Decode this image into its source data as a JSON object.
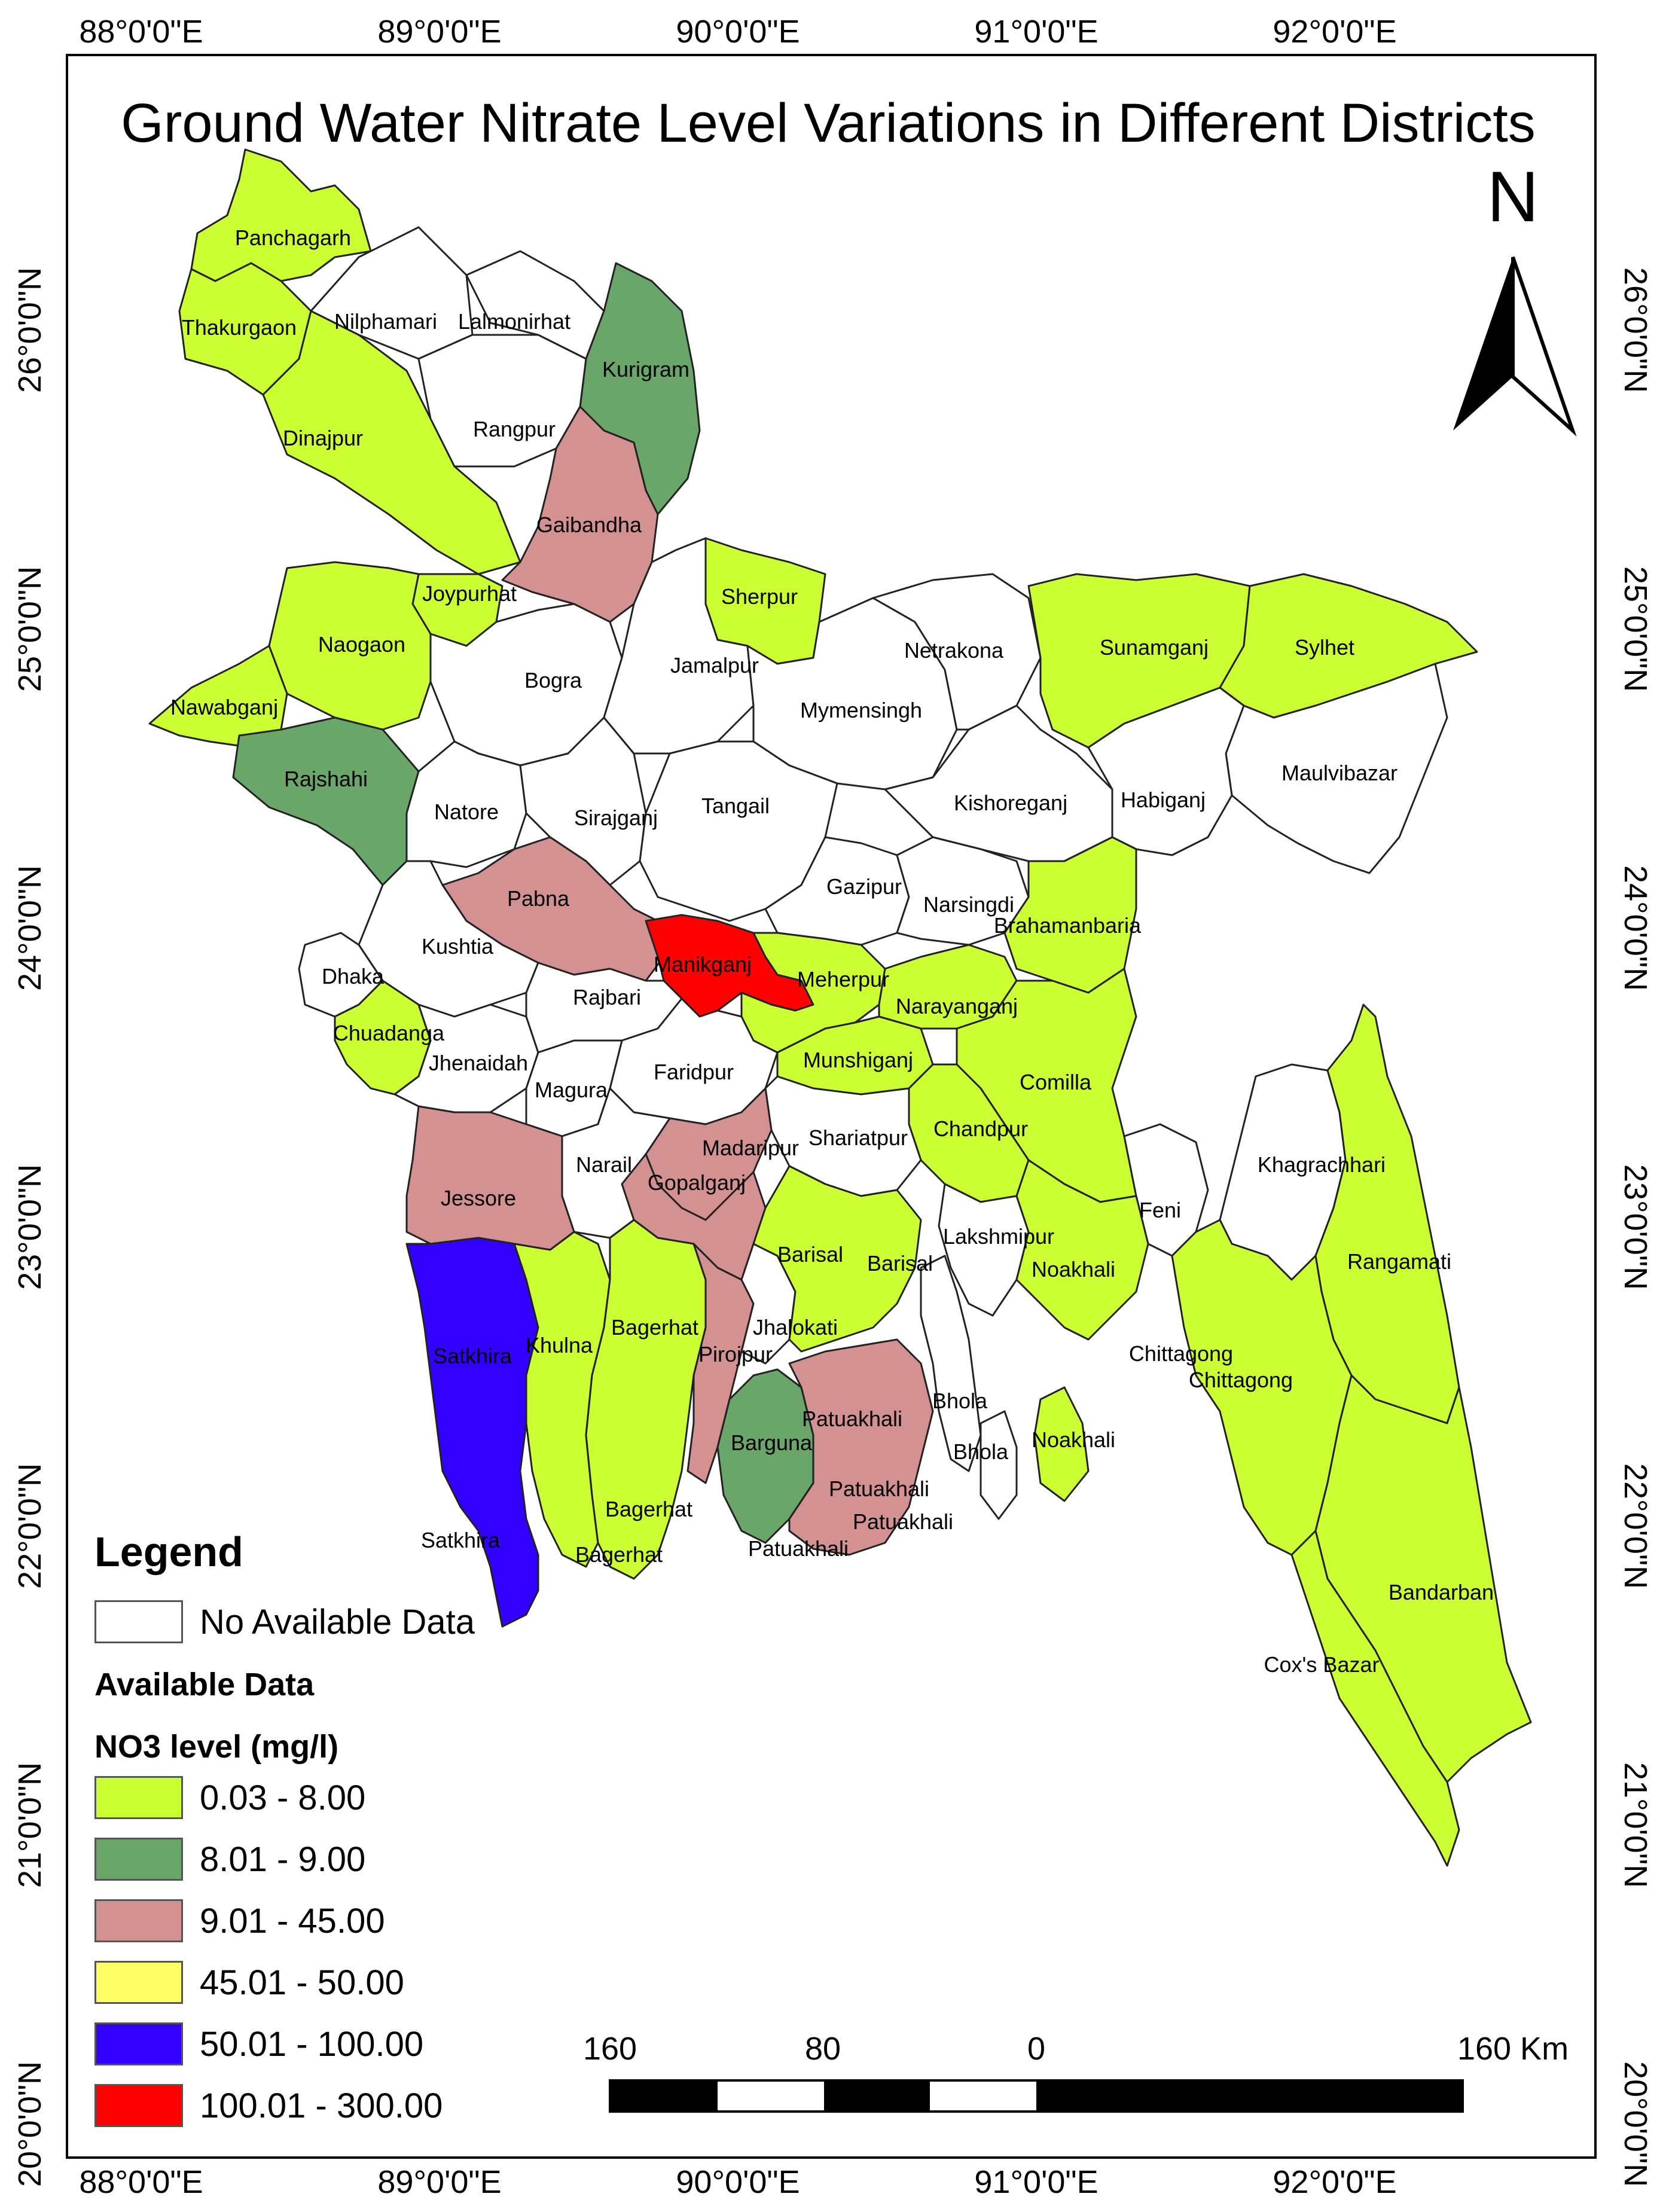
{
  "title": "Ground Water Nitrate Level Variations in Different Districts",
  "north_label": "N",
  "graticule": {
    "longitudes": [
      "88°0'0\"E",
      "89°0'0\"E",
      "90°0'0\"E",
      "91°0'0\"E",
      "92°0'0\"E"
    ],
    "latitudes": [
      "26°0'0\"N",
      "25°0'0\"N",
      "24°0'0\"N",
      "23°0'0\"N",
      "22°0'0\"N",
      "21°0'0\"N",
      "20°0'0\"N"
    ]
  },
  "legend": {
    "title": "Legend",
    "no_data_label": "No Available Data",
    "available_label": "Available Data",
    "field_label": "NO3 level (mg/l)",
    "classes": [
      {
        "label": "0.03 - 8.00",
        "color": "#ccff33"
      },
      {
        "label": "8.01 - 9.00",
        "color": "#6aa56a"
      },
      {
        "label": "9.01 - 45.00",
        "color": "#d49191"
      },
      {
        "label": "45.01 - 50.00",
        "color": "#ffff66"
      },
      {
        "label": "50.01 - 100.00",
        "color": "#3300ff"
      },
      {
        "label": "100.01 - 300.00",
        "color": "#ff0000"
      }
    ],
    "no_data_color": "#ffffff"
  },
  "scale_bar": {
    "labels": [
      "160",
      "80",
      "0",
      "160 Km"
    ]
  },
  "districts": [
    {
      "name": "Panchagarh",
      "class": "0.03 - 8.00"
    },
    {
      "name": "Thakurgaon",
      "class": "0.03 - 8.00"
    },
    {
      "name": "Nilphamari",
      "class": "No Available Data"
    },
    {
      "name": "Lalmonirhat",
      "class": "No Available Data"
    },
    {
      "name": "Kurigram",
      "class": "8.01 - 9.00"
    },
    {
      "name": "Dinajpur",
      "class": "0.03 - 8.00"
    },
    {
      "name": "Rangpur",
      "class": "No Available Data"
    },
    {
      "name": "Gaibandha",
      "class": "9.01 - 45.00"
    },
    {
      "name": "Joypurhat",
      "class": "0.03 - 8.00"
    },
    {
      "name": "Naogaon",
      "class": "0.03 - 8.00"
    },
    {
      "name": "Nawabganj",
      "class": "0.03 - 8.00"
    },
    {
      "name": "Bogra",
      "class": "No Available Data"
    },
    {
      "name": "Rajshahi",
      "class": "8.01 - 9.00"
    },
    {
      "name": "Natore",
      "class": "No Available Data"
    },
    {
      "name": "Sirajganj",
      "class": "No Available Data"
    },
    {
      "name": "Sherpur",
      "class": "0.03 - 8.00"
    },
    {
      "name": "Jamalpur",
      "class": "No Available Data"
    },
    {
      "name": "Netrakona",
      "class": "No Available Data"
    },
    {
      "name": "Sunamganj",
      "class": "0.03 - 8.00"
    },
    {
      "name": "Sylhet",
      "class": "0.03 - 8.00"
    },
    {
      "name": "Mymensingh",
      "class": "No Available Data"
    },
    {
      "name": "Maulvibazar",
      "class": "No Available Data"
    },
    {
      "name": "Tangail",
      "class": "No Available Data"
    },
    {
      "name": "Kishoreganj",
      "class": "No Available Data"
    },
    {
      "name": "Habiganj",
      "class": "No Available Data"
    },
    {
      "name": "Pabna",
      "class": "9.01 - 45.00"
    },
    {
      "name": "Gazipur",
      "class": "No Available Data"
    },
    {
      "name": "Narsingdi",
      "class": "No Available Data"
    },
    {
      "name": "Brahamanbaria",
      "class": "0.03 - 8.00"
    },
    {
      "name": "Kushtia",
      "class": "No Available Data"
    },
    {
      "name": "Manikganj",
      "class": "100.01 - 300.00"
    },
    {
      "name": "Dhaka",
      "class": "0.03 - 8.00"
    },
    {
      "name": "Meherpur",
      "class": "No Available Data"
    },
    {
      "name": "Rajbari",
      "class": "No Available Data"
    },
    {
      "name": "Narayanganj",
      "class": "0.03 - 8.00"
    },
    {
      "name": "Chuadanga",
      "class": "0.03 - 8.00"
    },
    {
      "name": "Jhenaidah",
      "class": "No Available Data"
    },
    {
      "name": "Faridpur",
      "class": "No Available Data"
    },
    {
      "name": "Munshiganj",
      "class": "0.03 - 8.00"
    },
    {
      "name": "Magura",
      "class": "No Available Data"
    },
    {
      "name": "Comilla",
      "class": "0.03 - 8.00"
    },
    {
      "name": "Chandpur",
      "class": "0.03 - 8.00"
    },
    {
      "name": "Shariatpur",
      "class": "No Available Data"
    },
    {
      "name": "Madaripur",
      "class": "9.01 - 45.00"
    },
    {
      "name": "Narail",
      "class": "No Available Data"
    },
    {
      "name": "Khagrachhari",
      "class": "No Available Data"
    },
    {
      "name": "Gopalganj",
      "class": "9.01 - 45.00"
    },
    {
      "name": "Jessore",
      "class": "9.01 - 45.00"
    },
    {
      "name": "Feni",
      "class": "No Available Data"
    },
    {
      "name": "Lakshmipur",
      "class": "No Available Data"
    },
    {
      "name": "Barisal",
      "class": "0.03 - 8.00"
    },
    {
      "name": "Noakhali",
      "class": "0.03 - 8.00"
    },
    {
      "name": "Rangamati",
      "class": "0.03 - 8.00"
    },
    {
      "name": "Satkhira",
      "class": "50.01 - 100.00"
    },
    {
      "name": "Khulna",
      "class": "0.03 - 8.00"
    },
    {
      "name": "Bagerhat",
      "class": "0.03 - 8.00"
    },
    {
      "name": "Jhalokati",
      "class": "No Available Data"
    },
    {
      "name": "Pirojpur",
      "class": "9.01 - 45.00"
    },
    {
      "name": "Chittagong",
      "class": "0.03 - 8.00"
    },
    {
      "name": "Bhola",
      "class": "No Available Data"
    },
    {
      "name": "Patuakhali",
      "class": "9.01 - 45.00"
    },
    {
      "name": "Barguna",
      "class": "8.01 - 9.00"
    },
    {
      "name": "Bandarban",
      "class": "0.03 - 8.00"
    },
    {
      "name": "Cox's Bazar",
      "class": "0.03 - 8.00"
    }
  ],
  "map_labels": [
    "Panchagarh",
    "Thakurgaon",
    "Nilphamari",
    "Lalmonirhat",
    "Kurigram",
    "Rangpur",
    "Dinajpur",
    "Gaibandha",
    "Joypurhat",
    "Sherpur",
    "Naogaon",
    "Netrakona",
    "Sunamganj",
    "Sylhet",
    "Jamalpur",
    "Bogra",
    "Nawabganj",
    "Mymensingh",
    "Rajshahi",
    "Maulvibazar",
    "Natore",
    "Sirajganj",
    "Tangail",
    "Kishoreganj",
    "Habiganj",
    "Gazipur",
    "Pabna",
    "Narsingdi",
    "Brahamanbaria",
    "Kushtia",
    "Manikganj",
    "Meherpur",
    "Dhaka",
    "Rajbari",
    "Narayanganj",
    "Chuadanga",
    "Jhenaidah",
    "Munshiganj",
    "Faridpur",
    "Comilla",
    "Magura",
    "Chandpur",
    "Shariatpur",
    "Madaripur",
    "Narail",
    "Khagrachhari",
    "Gopalganj",
    "Jessore",
    "Feni",
    "Lakshmipur",
    "Barisal",
    "Barisal",
    "Noakhali",
    "Rangamati",
    "Jhalokati",
    "Bagerhat",
    "Satkhira",
    "Khulna",
    "Pirojpur",
    "Chittagong",
    "Chittagong",
    "Patuakhali",
    "Bhola",
    "Bhola",
    "Noakhali",
    "Barguna",
    "Patuakhali",
    "Bagerhat",
    "Patuakhali",
    "Satkhira",
    "Bagerhat",
    "Patuakhali",
    "Bandarban",
    "Cox's Bazar"
  ]
}
